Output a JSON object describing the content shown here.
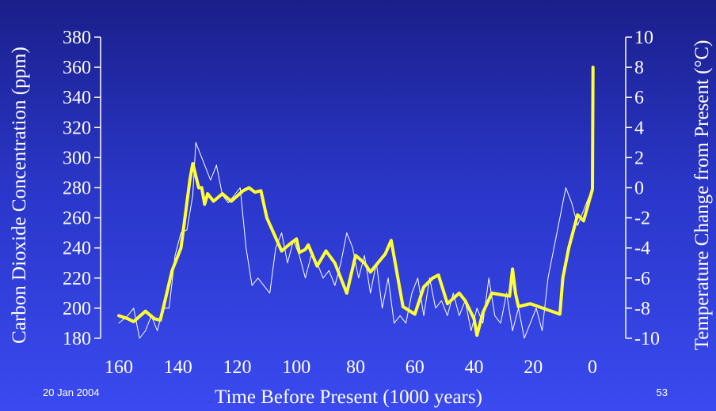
{
  "footer": {
    "date": "20 Jan 2004",
    "page_number": "53"
  },
  "chart_data": {
    "type": "line",
    "title": "",
    "xlabel": "Time Before Present (1000 years)",
    "ylabel_left": "Carbon Dioxide Concentration (ppm)",
    "ylabel_right": "Temperature Change from Present (°C)",
    "xlim": [
      160,
      0
    ],
    "ylim_left": [
      180,
      380
    ],
    "ylim_right": [
      -10,
      10
    ],
    "x_ticks": [
      "160",
      "140",
      "120",
      "100",
      "80",
      "60",
      "40",
      "20",
      "0"
    ],
    "y_left_ticks": [
      "380",
      "360",
      "340",
      "320",
      "300",
      "280",
      "260",
      "240",
      "220",
      "200",
      "180"
    ],
    "y_right_ticks": [
      "10",
      "8",
      "6",
      "4",
      "2",
      "0",
      "-2",
      "-4",
      "-6",
      "-8",
      "-10"
    ],
    "grid": false,
    "colors": {
      "co2": "#ffff33",
      "temperature": "#ffffff",
      "axis": "#ffffff"
    },
    "series": [
      {
        "axis": "right",
        "color": "#ffffff",
        "points": [
          [
            160,
            -9
          ],
          [
            157,
            -8.5
          ],
          [
            155,
            -8
          ],
          [
            153,
            -10
          ],
          [
            151,
            -9.5
          ],
          [
            149,
            -8.5
          ],
          [
            147,
            -9.5
          ],
          [
            145,
            -8
          ],
          [
            143,
            -8
          ],
          [
            141,
            -4.5
          ],
          [
            139,
            -3
          ],
          [
            137,
            -2.8
          ],
          [
            135,
            -0.5
          ],
          [
            134,
            3
          ],
          [
            131,
            1.5
          ],
          [
            129,
            0.5
          ],
          [
            127,
            1.5
          ],
          [
            125,
            -0.5
          ],
          [
            123,
            -1
          ],
          [
            121,
            -0.5
          ],
          [
            119,
            0
          ],
          [
            117,
            -4
          ],
          [
            115,
            -6.5
          ],
          [
            113,
            -6
          ],
          [
            111,
            -6.5
          ],
          [
            109,
            -7
          ],
          [
            107,
            -4
          ],
          [
            105,
            -3
          ],
          [
            103,
            -5
          ],
          [
            101,
            -3.5
          ],
          [
            99,
            -4.5
          ],
          [
            97,
            -6
          ],
          [
            95,
            -4.5
          ],
          [
            93,
            -5
          ],
          [
            91,
            -6
          ],
          [
            89,
            -5.5
          ],
          [
            87,
            -6.5
          ],
          [
            85,
            -5
          ],
          [
            83,
            -3
          ],
          [
            81,
            -4
          ],
          [
            79,
            -6
          ],
          [
            77,
            -4.5
          ],
          [
            75,
            -7
          ],
          [
            73,
            -5
          ],
          [
            71,
            -8
          ],
          [
            69,
            -6
          ],
          [
            67,
            -9
          ],
          [
            65,
            -8.5
          ],
          [
            63,
            -9
          ],
          [
            61,
            -7
          ],
          [
            59,
            -6
          ],
          [
            57,
            -8.5
          ],
          [
            55,
            -6
          ],
          [
            53,
            -8
          ],
          [
            51,
            -7.5
          ],
          [
            49,
            -8.5
          ],
          [
            47,
            -7
          ],
          [
            45,
            -8.5
          ],
          [
            43,
            -7.5
          ],
          [
            41,
            -9.5
          ],
          [
            39,
            -8
          ],
          [
            37,
            -9
          ],
          [
            35,
            -6
          ],
          [
            33,
            -8.5
          ],
          [
            31,
            -9
          ],
          [
            29,
            -7
          ],
          [
            27,
            -9.5
          ],
          [
            25,
            -8
          ],
          [
            23,
            -10
          ],
          [
            21,
            -9
          ],
          [
            19,
            -8
          ],
          [
            17,
            -9.5
          ],
          [
            15,
            -6
          ],
          [
            13,
            -4
          ],
          [
            11,
            -2
          ],
          [
            9,
            0
          ],
          [
            7,
            -1
          ],
          [
            5,
            -2.5
          ],
          [
            3,
            -1.5
          ],
          [
            1,
            -0.5
          ],
          [
            0,
            0
          ]
        ]
      },
      {
        "axis": "left",
        "color": "#ffff33",
        "points": [
          [
            160,
            195
          ],
          [
            157,
            193
          ],
          [
            155,
            191
          ],
          [
            151,
            198
          ],
          [
            148,
            193
          ],
          [
            146,
            192
          ],
          [
            145,
            200
          ],
          [
            142,
            225
          ],
          [
            139,
            240
          ],
          [
            136,
            285
          ],
          [
            135,
            296
          ],
          [
            133,
            280
          ],
          [
            132,
            280
          ],
          [
            131,
            269
          ],
          [
            130,
            276
          ],
          [
            128,
            271
          ],
          [
            125,
            276
          ],
          [
            122,
            271
          ],
          [
            118,
            278
          ],
          [
            116,
            280
          ],
          [
            114,
            277
          ],
          [
            112,
            278
          ],
          [
            110,
            260
          ],
          [
            105,
            238
          ],
          [
            102,
            243
          ],
          [
            100,
            246
          ],
          [
            99,
            237
          ],
          [
            97,
            239
          ],
          [
            96,
            242
          ],
          [
            93,
            228
          ],
          [
            90,
            238
          ],
          [
            87,
            230
          ],
          [
            85,
            220
          ],
          [
            83,
            210
          ],
          [
            80,
            235
          ],
          [
            77,
            230
          ],
          [
            75,
            224
          ],
          [
            70,
            236
          ],
          [
            68,
            245
          ],
          [
            64,
            201
          ],
          [
            60,
            196
          ],
          [
            57,
            214
          ],
          [
            54,
            220
          ],
          [
            52,
            222
          ],
          [
            49,
            203
          ],
          [
            45,
            210
          ],
          [
            43,
            205
          ],
          [
            40,
            193
          ],
          [
            39,
            182
          ],
          [
            37,
            197
          ],
          [
            34,
            210
          ],
          [
            28,
            208
          ],
          [
            27,
            226
          ],
          [
            26,
            210
          ],
          [
            25,
            201
          ],
          [
            21,
            203
          ],
          [
            11,
            196
          ],
          [
            10,
            220
          ],
          [
            8,
            240
          ],
          [
            5,
            262
          ],
          [
            3,
            258
          ],
          [
            0,
            279
          ],
          [
            -0.2,
            360
          ]
        ]
      }
    ]
  }
}
